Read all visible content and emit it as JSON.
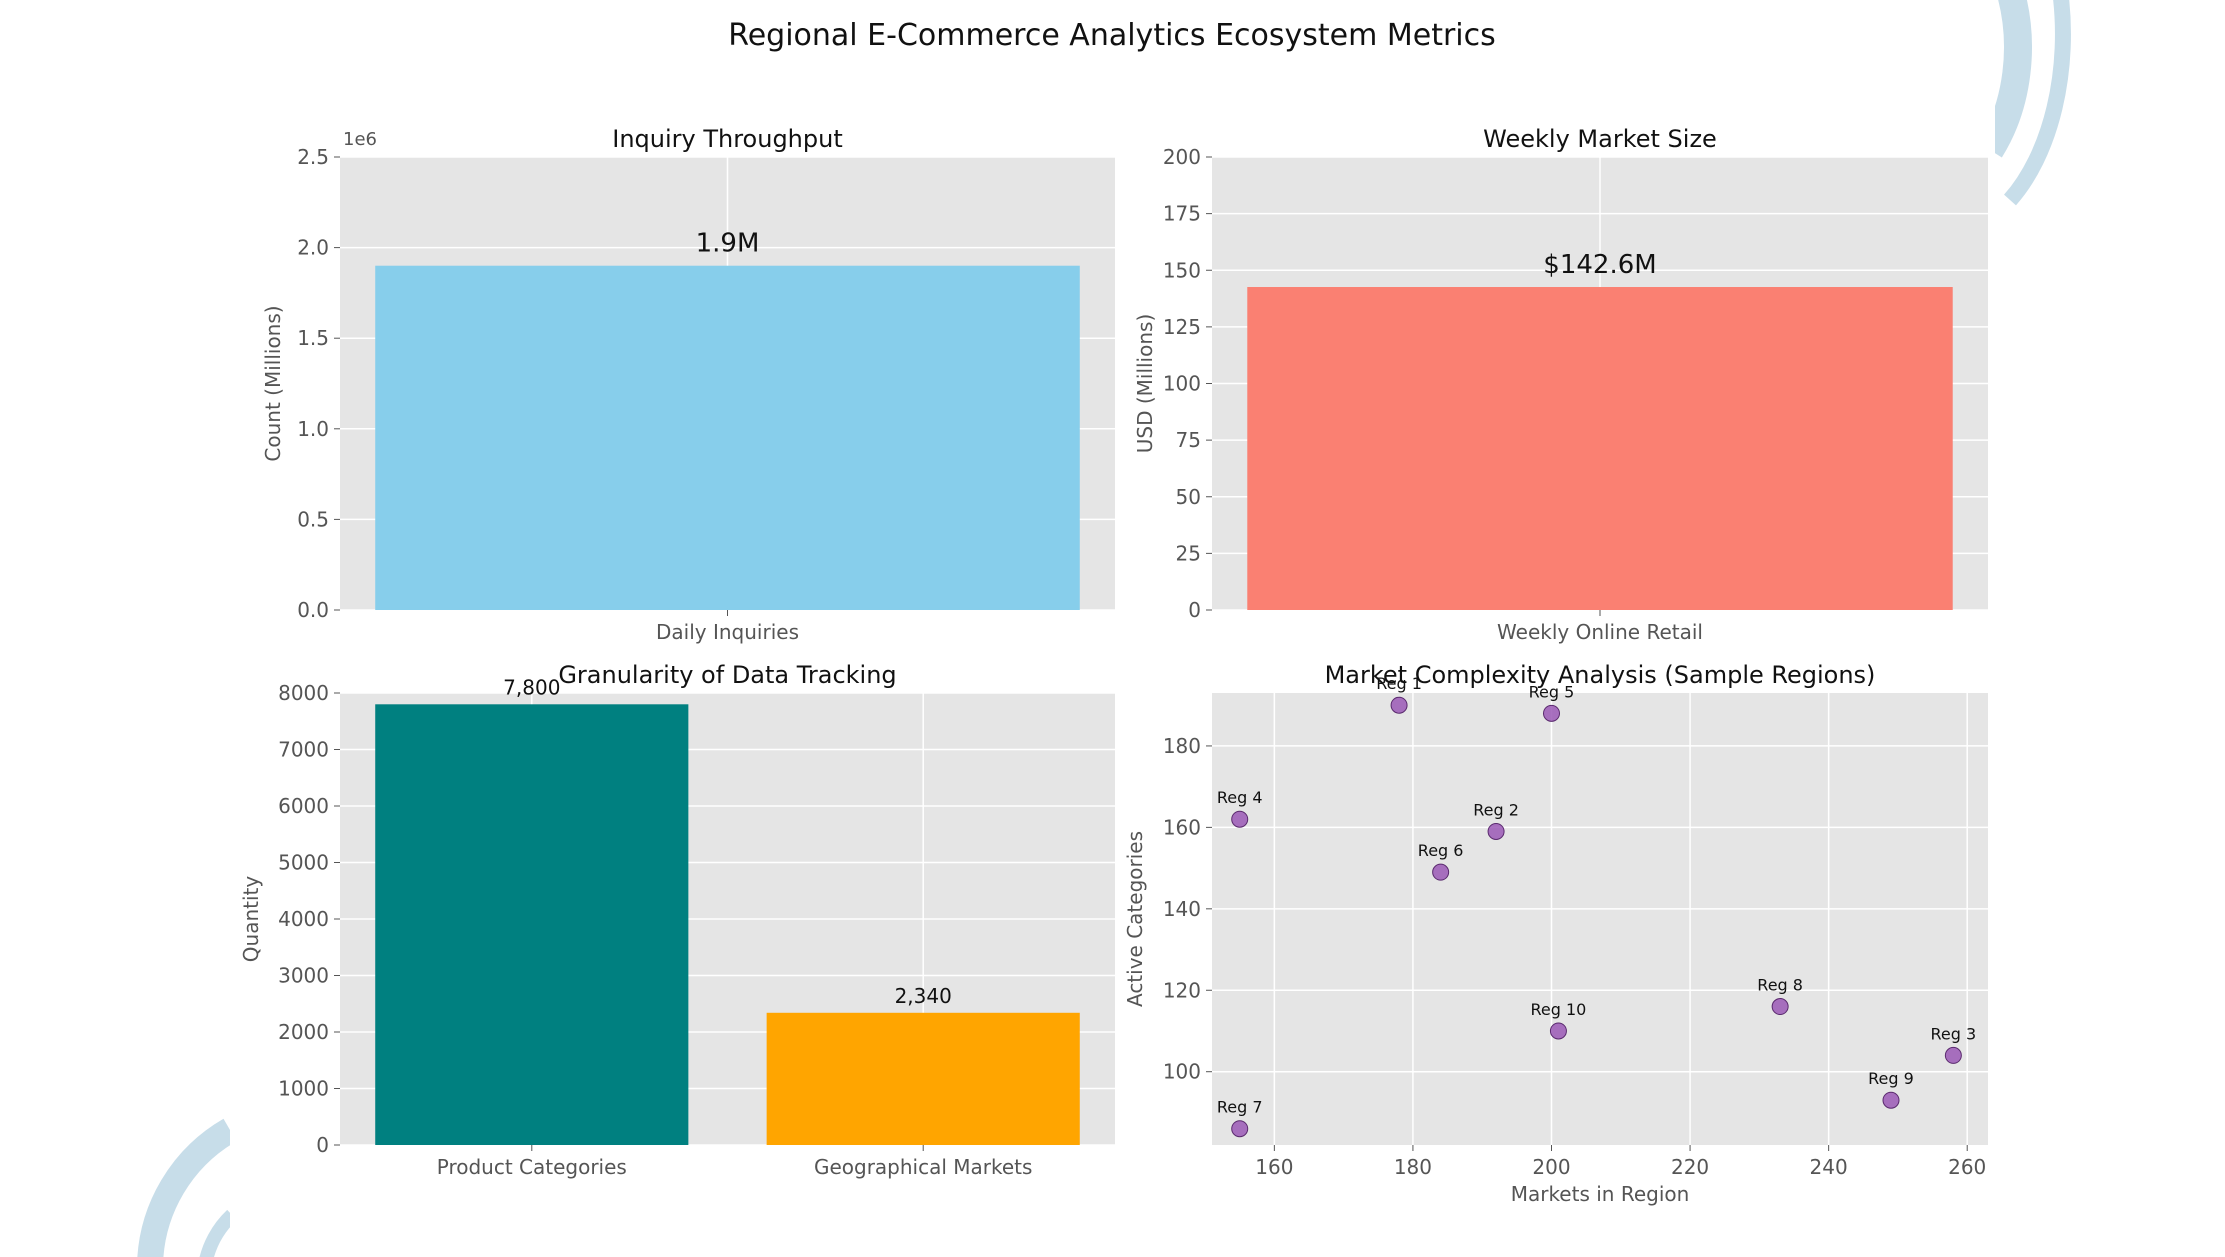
{
  "title": "Regional E-Commerce Analytics Ecosystem Metrics",
  "colors": {
    "panel_bg": "#e5e5e5",
    "grid": "#ffffff",
    "tick_text": "#555555",
    "deco_arc": "#c7dde9"
  },
  "chart_data": [
    {
      "id": "inquiry",
      "type": "bar",
      "title": "Inquiry Throughput",
      "categories": [
        "Daily Inquiries"
      ],
      "values": [
        1900000
      ],
      "bar_labels": [
        "1.9M"
      ],
      "colors": [
        "#87ceeb"
      ],
      "ylabel": "Count (Millions)",
      "ylim": [
        0,
        2500000
      ],
      "yticks": [
        0,
        500000,
        1000000,
        1500000,
        2000000,
        2500000
      ],
      "ytick_labels": [
        "0.0",
        "0.5",
        "1.0",
        "1.5",
        "2.0",
        "2.5"
      ],
      "offset_text": "1e6",
      "grid": true
    },
    {
      "id": "market",
      "type": "bar",
      "title": "Weekly Market Size",
      "categories": [
        "Weekly Online Retail"
      ],
      "values": [
        142.6
      ],
      "bar_labels": [
        "$142.6M"
      ],
      "colors": [
        "#fa8072"
      ],
      "ylabel": "USD (Millions)",
      "ylim": [
        0,
        200
      ],
      "yticks": [
        0,
        25,
        50,
        75,
        100,
        125,
        150,
        175,
        200
      ],
      "ytick_labels": [
        "0",
        "25",
        "50",
        "75",
        "100",
        "125",
        "150",
        "175",
        "200"
      ],
      "grid": true
    },
    {
      "id": "granularity",
      "type": "bar",
      "title": "Granularity of Data Tracking",
      "categories": [
        "Product Categories",
        "Geographical Markets"
      ],
      "values": [
        7800,
        2340
      ],
      "bar_labels": [
        "7,800",
        "2,340"
      ],
      "colors": [
        "#008080",
        "#ffa500"
      ],
      "ylabel": "Quantity",
      "ylim": [
        0,
        8000
      ],
      "yticks": [
        0,
        1000,
        2000,
        3000,
        4000,
        5000,
        6000,
        7000,
        8000
      ],
      "ytick_labels": [
        "0",
        "1000",
        "2000",
        "3000",
        "4000",
        "5000",
        "6000",
        "7000",
        "8000"
      ],
      "grid": true
    },
    {
      "id": "complexity",
      "type": "scatter",
      "title": "Market Complexity Analysis (Sample Regions)",
      "xlabel": "Markets in Region",
      "ylabel": "Active Categories",
      "xlim": [
        151,
        263
      ],
      "ylim": [
        82,
        193
      ],
      "xticks": [
        160,
        180,
        200,
        220,
        240,
        260
      ],
      "yticks": [
        100,
        120,
        140,
        160,
        180
      ],
      "point_color": "#9b59b6",
      "points": [
        {
          "label": "Reg 1",
          "x": 178,
          "y": 190
        },
        {
          "label": "Reg 2",
          "x": 192,
          "y": 159
        },
        {
          "label": "Reg 3",
          "x": 258,
          "y": 104
        },
        {
          "label": "Reg 4",
          "x": 155,
          "y": 162
        },
        {
          "label": "Reg 5",
          "x": 200,
          "y": 188
        },
        {
          "label": "Reg 6",
          "x": 184,
          "y": 149
        },
        {
          "label": "Reg 7",
          "x": 155,
          "y": 86
        },
        {
          "label": "Reg 8",
          "x": 233,
          "y": 116
        },
        {
          "label": "Reg 9",
          "x": 249,
          "y": 93
        },
        {
          "label": "Reg 10",
          "x": 201,
          "y": 110
        }
      ],
      "grid": true
    }
  ]
}
